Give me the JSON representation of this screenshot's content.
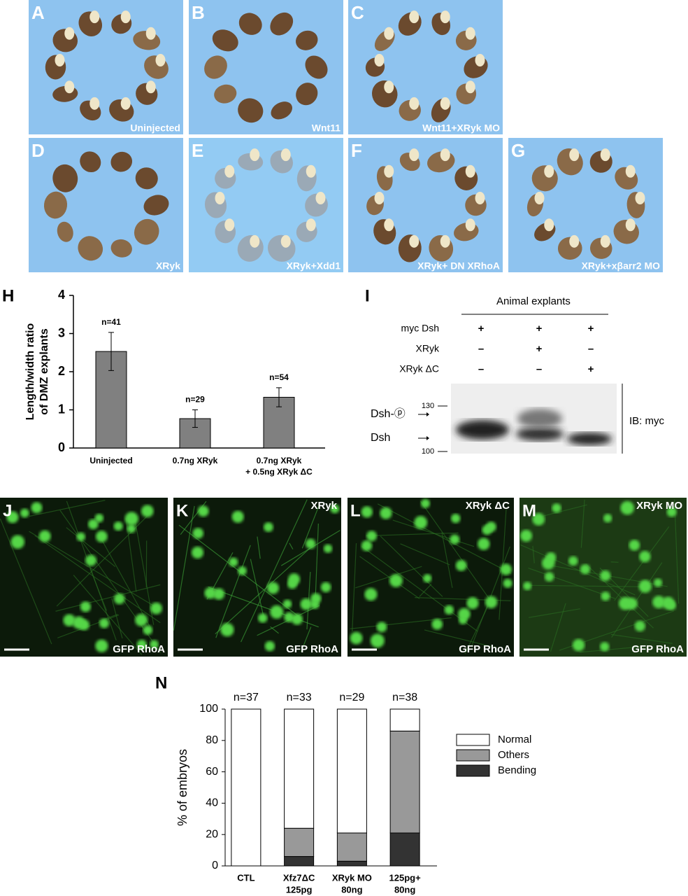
{
  "explant_panels": [
    {
      "letter": "A",
      "label": "Uninjected"
    },
    {
      "letter": "B",
      "label": "Wnt11"
    },
    {
      "letter": "C",
      "label": "Wnt11+XRyk MO"
    },
    {
      "letter": "D",
      "label": "XRyk"
    },
    {
      "letter": "E",
      "label": "XRyk+Xdd1"
    },
    {
      "letter": "F",
      "label": "XRyk+ DN XRhoA"
    },
    {
      "letter": "G",
      "label": "XRyk+xβarr2 MO"
    }
  ],
  "chart_data": [
    {
      "type": "bar",
      "panel": "H",
      "ylabel": [
        "Length/width ratio",
        "of DMZ explants"
      ],
      "categories": [
        [
          "Uninjected"
        ],
        [
          "0.7ng XRyk"
        ],
        [
          "0.7ng XRyk",
          "+ 0.5ng XRyk ΔC"
        ]
      ],
      "values": [
        2.53,
        0.77,
        1.33
      ],
      "errors": [
        0.5,
        0.23,
        0.25
      ],
      "annotations": [
        "n=41",
        "n=29",
        "n=54"
      ],
      "color": "#808080",
      "ylim": [
        0,
        4
      ],
      "yticks": [
        0,
        1,
        2,
        3,
        4
      ]
    },
    {
      "type": "stacked-bar",
      "panel": "N",
      "ylabel": "% of embryos",
      "categories": [
        [
          "CTL"
        ],
        [
          "Xfz7ΔC",
          "125pg"
        ],
        [
          "XRyk MO",
          "80ng"
        ],
        [
          "125pg+",
          "80ng"
        ]
      ],
      "annotations": [
        "n=37",
        "n=33",
        "n=29",
        "n=38"
      ],
      "series": [
        {
          "name": "Normal",
          "color": "#ffffff",
          "values": [
            100,
            76,
            79,
            14
          ]
        },
        {
          "name": "Others",
          "color": "#999999",
          "values": [
            0,
            18,
            18,
            65
          ]
        },
        {
          "name": "Bending",
          "color": "#333333",
          "values": [
            0,
            6,
            3,
            21
          ]
        }
      ],
      "ylim": [
        0,
        100
      ],
      "yticks": [
        0,
        20,
        40,
        60,
        80,
        100
      ]
    }
  ],
  "blot": {
    "letter": "I",
    "title": "Animal explants",
    "rows": [
      {
        "label": "myc Dsh",
        "signs": [
          "+",
          "+",
          "+"
        ]
      },
      {
        "label": "XRyk",
        "signs": [
          "–",
          "+",
          "–"
        ]
      },
      {
        "label": "XRyk ΔC",
        "signs": [
          "–",
          "–",
          "+"
        ]
      }
    ],
    "markers": [
      "130",
      "100"
    ],
    "bands": [
      "Dsh-ⓟ",
      "Dsh"
    ],
    "antibody": "IB: myc"
  },
  "microscopy_panels": [
    {
      "letter": "J",
      "label": "GFP RhoA"
    },
    {
      "letter": "K",
      "condition": "XRyk",
      "label": "GFP RhoA"
    },
    {
      "letter": "L",
      "condition": "XRyk ΔC",
      "label": "GFP RhoA"
    },
    {
      "letter": "M",
      "condition": "XRyk MO",
      "label": "GFP RhoA"
    }
  ]
}
